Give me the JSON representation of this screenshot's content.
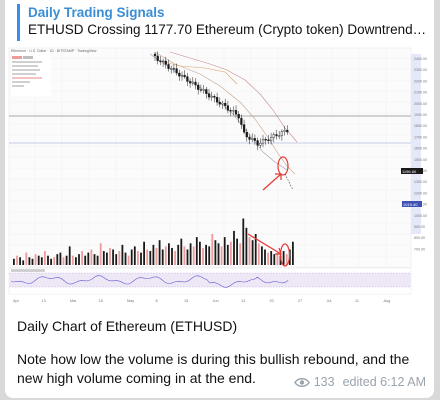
{
  "message": {
    "reply_title": "Daily Trading Signals",
    "reply_text": "ETHUSD Crossing 1177.70 Ethereum (Crypto token) Downtrend r...",
    "caption_line1": "Daily Chart of Ethereum (ETHUSD)",
    "caption_line2": "Note how low the volume is during this bullish rebound, and the new high volume coming in at the end.",
    "views": "133",
    "edited": "edited 6:12 AM"
  },
  "chart_header": {
    "symbol": "Ethereum · U.S. Dollar · 1D · BITSTAMP · TradingView"
  },
  "price_axis": {
    "labels": [
      "2400.00",
      "2300.00",
      "2200.00",
      "2100.00",
      "2000.00",
      "1900.00",
      "1800.00",
      "1700.00",
      "1600.00",
      "1500.00",
      "1400.00",
      "1300.00",
      "1200.00",
      "1100.00",
      "1000.00",
      "900.00",
      "800.00",
      "700.00"
    ],
    "current_price": "1196.60",
    "marker_price": "1019.40"
  },
  "time_axis": {
    "labels": [
      "Apr",
      "13",
      "Mar",
      "18",
      "May",
      "8",
      "15",
      "Jun",
      "13",
      "20",
      "27",
      "Jul",
      "11",
      "Aug"
    ]
  },
  "colors": {
    "accent": "#3390ec",
    "bull": "#1a1a1a",
    "annotation": "#e53935",
    "rsi_zone": "#ede7f6"
  },
  "icons": {
    "views": "eye-icon"
  }
}
